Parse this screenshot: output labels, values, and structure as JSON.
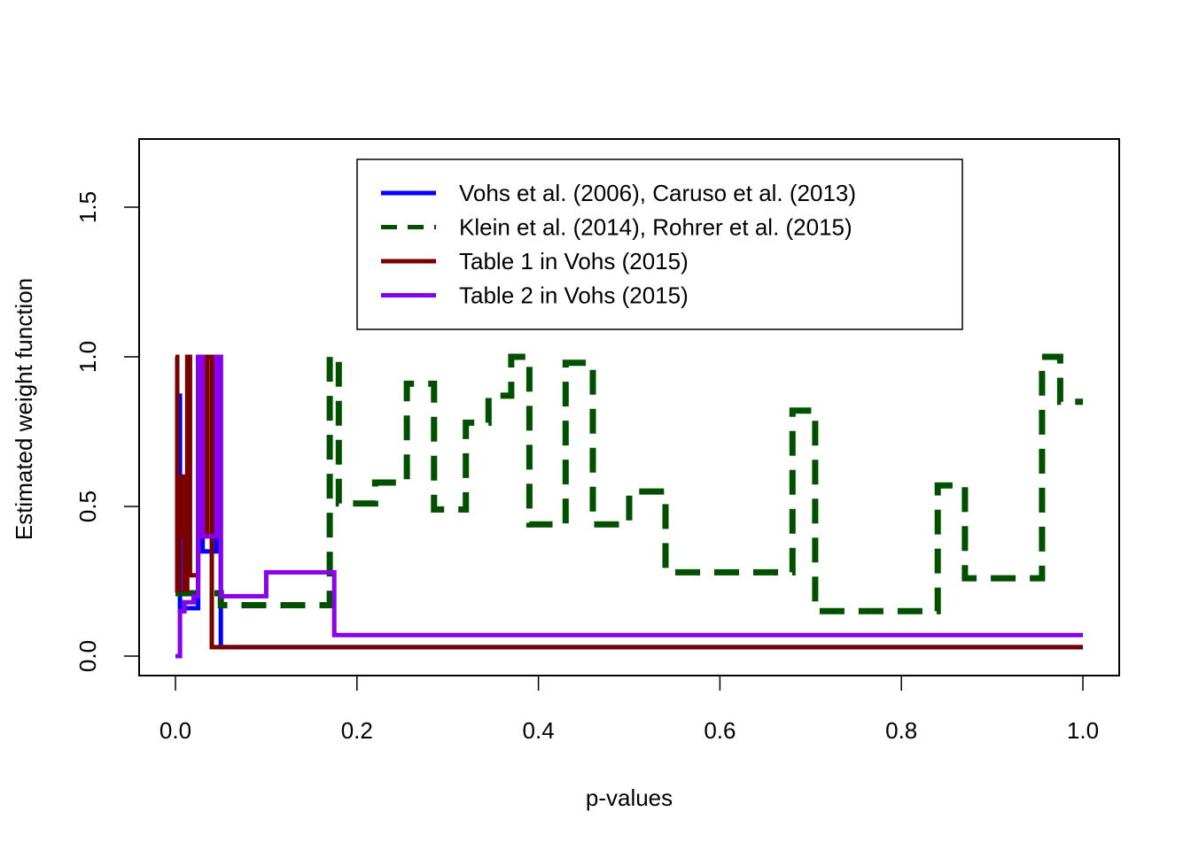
{
  "chart_data": {
    "type": "line",
    "step": true,
    "title": "",
    "xlabel": "p-values",
    "ylabel": "Estimated weight function",
    "xlim": [
      0,
      1
    ],
    "ylim": [
      0,
      1.7
    ],
    "xticks": [
      "0.0",
      "0.2",
      "0.4",
      "0.6",
      "0.8",
      "1.0"
    ],
    "yticks": [
      "0.0",
      "0.5",
      "1.0",
      "1.5"
    ],
    "grid": false,
    "legend_position": "top-center",
    "series": [
      {
        "name": "Vohs et al. (2006), Caruso et al. (2013)",
        "color": "#0000ff",
        "dash": "solid",
        "x": [
          0,
          0.003,
          0.005,
          0.006,
          0.008,
          0.012,
          0.02,
          0.025,
          0.03,
          0.04,
          0.045,
          0.05,
          1.0
        ],
        "y": [
          0.3,
          0.87,
          0.15,
          0.15,
          0.16,
          0.16,
          0.16,
          1.0,
          0.35,
          0.35,
          1.0,
          0.03,
          0.03
        ]
      },
      {
        "name": "Klein et al. (2014), Rohrer et al. (2015)",
        "color": "#005000",
        "dash": "dashed",
        "x": [
          0,
          0.05,
          0.17,
          0.18,
          0.22,
          0.255,
          0.285,
          0.32,
          0.345,
          0.37,
          0.39,
          0.43,
          0.46,
          0.5,
          0.54,
          0.61,
          0.68,
          0.705,
          0.84,
          0.87,
          0.955,
          0.975,
          1.0
        ],
        "y": [
          0.21,
          0.17,
          1.0,
          0.51,
          0.58,
          0.91,
          0.49,
          0.78,
          0.87,
          1.0,
          0.44,
          0.98,
          0.44,
          0.55,
          0.28,
          0.28,
          0.82,
          0.15,
          0.57,
          0.26,
          1.0,
          0.85,
          0.85
        ]
      },
      {
        "name": "Table 1 in Vohs (2015)",
        "color": "#7a0000",
        "dash": "solid",
        "x": [
          0,
          0.002,
          0.004,
          0.006,
          0.008,
          0.01,
          0.013,
          0.016,
          0.02,
          0.025,
          0.03,
          0.035,
          0.04,
          1.0
        ],
        "y": [
          1.0,
          0.22,
          0.6,
          0.4,
          0.6,
          0.22,
          1.0,
          0.27,
          0.27,
          1.0,
          0.4,
          1.0,
          0.03,
          0.03
        ]
      },
      {
        "name": "Table 2 in Vohs (2015)",
        "color": "#8800ee",
        "dash": "solid",
        "x": [
          0,
          0.005,
          0.01,
          0.02,
          0.025,
          0.03,
          0.04,
          0.045,
          0.05,
          0.1,
          0.17,
          0.175,
          1.0
        ],
        "y": [
          0.0,
          0.15,
          0.18,
          0.2,
          1.0,
          0.4,
          0.4,
          1.0,
          0.2,
          0.28,
          0.28,
          0.07,
          0.07
        ]
      }
    ]
  }
}
